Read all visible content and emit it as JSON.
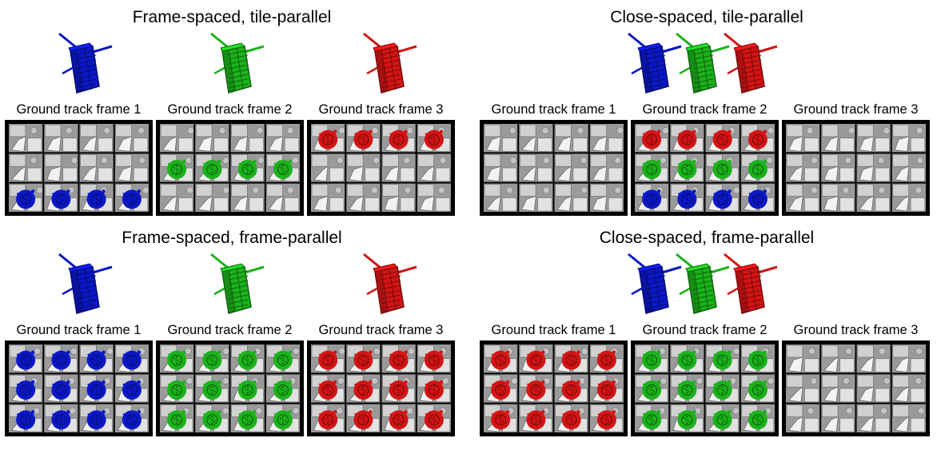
{
  "colors": {
    "blue": "#0a18c8",
    "green": "#1bb21b",
    "red": "#d41414"
  },
  "panels": [
    {
      "title": "Frame-spaced, tile-parallel",
      "spacing": "frame",
      "frames": [
        {
          "label": "Ground track frame 1",
          "rows": [
            "",
            "",
            "blue"
          ]
        },
        {
          "label": "Ground track frame 2",
          "rows": [
            "",
            "green",
            ""
          ]
        },
        {
          "label": "Ground track frame 3",
          "rows": [
            "red",
            "",
            ""
          ]
        }
      ]
    },
    {
      "title": "Close-spaced, tile-parallel",
      "spacing": "close",
      "frames": [
        {
          "label": "Ground track frame 1",
          "rows": [
            "",
            "",
            ""
          ]
        },
        {
          "label": "Ground track frame 2",
          "rows": [
            "red",
            "green",
            "blue"
          ]
        },
        {
          "label": "Ground track frame 3",
          "rows": [
            "",
            "",
            ""
          ]
        }
      ]
    },
    {
      "title": "Frame-spaced, frame-parallel",
      "spacing": "frame",
      "frames": [
        {
          "label": "Ground track frame 1",
          "rows": [
            "blue",
            "blue",
            "blue"
          ]
        },
        {
          "label": "Ground track frame 2",
          "rows": [
            "green",
            "green",
            "green"
          ]
        },
        {
          "label": "Ground track frame 3",
          "rows": [
            "red",
            "red",
            "red"
          ]
        }
      ]
    },
    {
      "title": "Close-spaced, frame-parallel",
      "spacing": "close",
      "frames": [
        {
          "label": "Ground track frame 1",
          "rows": [
            "red",
            "red",
            "red"
          ]
        },
        {
          "label": "Ground track frame 2",
          "rows": [
            "green",
            "green",
            "green"
          ]
        },
        {
          "label": "Ground track frame 3",
          "rows": [
            "",
            "",
            ""
          ]
        }
      ]
    }
  ],
  "satellite_icons": [
    "blue-satellite-icon",
    "green-satellite-icon",
    "red-satellite-icon"
  ]
}
